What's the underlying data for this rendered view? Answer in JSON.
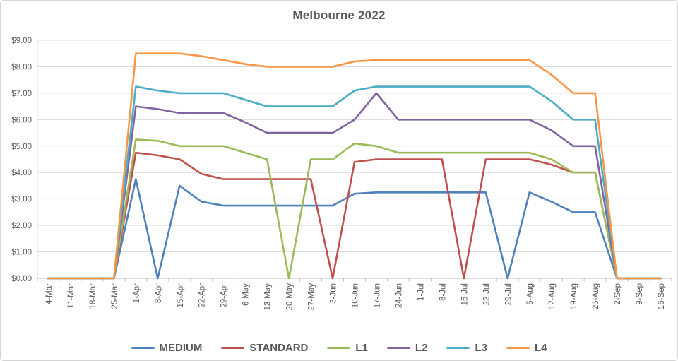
{
  "chart_data": {
    "type": "line",
    "title": "Melbourne 2022",
    "xlabel": "",
    "ylabel": "",
    "ylim": [
      0,
      9
    ],
    "y_tick_step": 1,
    "y_tick_labels": [
      "$0.00",
      "$1.00",
      "$2.00",
      "$3.00",
      "$4.00",
      "$5.00",
      "$6.00",
      "$7.00",
      "$8.00",
      "$9.00"
    ],
    "grid": "horizontal",
    "legend_position": "bottom",
    "x_labels_rotation_deg": 90,
    "categories": [
      "4-Mar",
      "11-Mar",
      "18-Mar",
      "25-Mar",
      "1-Apr",
      "8-Apr",
      "15-Apr",
      "22-Apr",
      "29-Apr",
      "6-May",
      "13-May",
      "20-May",
      "27-May",
      "3-Jun",
      "10-Jun",
      "17-Jun",
      "24-Jun",
      "1-Jul",
      "8-Jul",
      "15-Jul",
      "22-Jul",
      "29-Jul",
      "5-Aug",
      "12-Aug",
      "19-Aug",
      "26-Aug",
      "2-Sep",
      "9-Sep",
      "16-Sep"
    ],
    "series": [
      {
        "name": "MEDIUM",
        "color": "#4F81BD",
        "values": [
          0,
          0,
          0,
          0,
          3.75,
          0,
          3.5,
          2.9,
          2.75,
          2.75,
          2.75,
          2.75,
          2.75,
          2.75,
          3.2,
          3.25,
          3.25,
          3.25,
          3.25,
          3.25,
          3.25,
          0,
          3.25,
          2.9,
          2.5,
          2.5,
          0,
          0,
          0
        ]
      },
      {
        "name": "STANDARD",
        "color": "#C0504D",
        "values": [
          0,
          0,
          0,
          0,
          4.75,
          4.65,
          4.5,
          3.95,
          3.75,
          3.75,
          3.75,
          3.75,
          3.75,
          0,
          4.4,
          4.5,
          4.5,
          4.5,
          4.5,
          0,
          4.5,
          4.5,
          4.5,
          4.3,
          4,
          4,
          0,
          0,
          0
        ]
      },
      {
        "name": "L1",
        "color": "#9BBB59",
        "values": [
          0,
          0,
          0,
          0,
          5.25,
          5.2,
          5,
          5,
          5,
          4.75,
          4.5,
          0,
          4.5,
          4.5,
          5.1,
          5,
          4.75,
          4.75,
          4.75,
          4.75,
          4.75,
          4.75,
          4.75,
          4.5,
          4,
          4,
          0,
          0,
          0
        ]
      },
      {
        "name": "L2",
        "color": "#8064A2",
        "values": [
          0,
          0,
          0,
          0,
          6.5,
          6.4,
          6.25,
          6.25,
          6.25,
          5.9,
          5.5,
          5.5,
          5.5,
          5.5,
          6,
          7,
          6,
          6,
          6,
          6,
          6,
          6,
          6,
          5.6,
          5,
          5,
          0,
          0,
          0
        ]
      },
      {
        "name": "L3",
        "color": "#4BACC6",
        "values": [
          0,
          0,
          0,
          0,
          7.25,
          7.1,
          7,
          7,
          7,
          6.75,
          6.5,
          6.5,
          6.5,
          6.5,
          7.1,
          7.25,
          7.25,
          7.25,
          7.25,
          7.25,
          7.25,
          7.25,
          7.25,
          6.7,
          6,
          6,
          0,
          0,
          0
        ]
      },
      {
        "name": "L4",
        "color": "#F79646",
        "values": [
          0,
          0,
          0,
          0,
          8.5,
          8.5,
          8.5,
          8.4,
          8.25,
          8.1,
          8,
          8,
          8,
          8,
          8.2,
          8.25,
          8.25,
          8.25,
          8.25,
          8.25,
          8.25,
          8.25,
          8.25,
          7.7,
          7,
          7,
          0,
          0,
          0
        ]
      }
    ]
  }
}
